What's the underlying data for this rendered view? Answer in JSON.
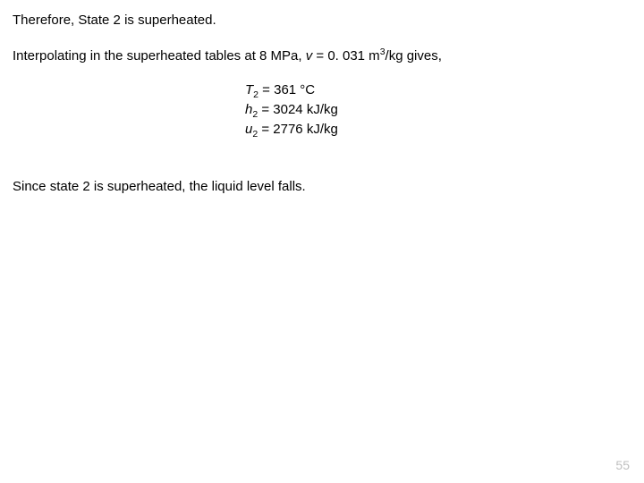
{
  "line1": "Therefore, State 2 is superheated.",
  "line2_pre": "Interpolating in the superheated tables at 8 MPa, ",
  "line2_var": "v",
  "line2_post": " = 0. 031 m",
  "line2_sup": "3",
  "line2_end": "/kg gives,",
  "eq1_var": "T",
  "eq1_sub": "2",
  "eq1_rest": " = 361 °C",
  "eq2_var": "h",
  "eq2_sub": "2",
  "eq2_rest": " = 3024 kJ/kg",
  "eq3_var": "u",
  "eq3_sub": "2",
  "eq3_rest": " = 2776 kJ/kg",
  "line3": "Since state 2 is superheated, the liquid level falls.",
  "pagenum": "55",
  "colors": {
    "text": "#000000",
    "background": "#ffffff",
    "pagenum": "#bfbfbf"
  },
  "fontsize_body": 15,
  "fontsize_pagenum": 14
}
